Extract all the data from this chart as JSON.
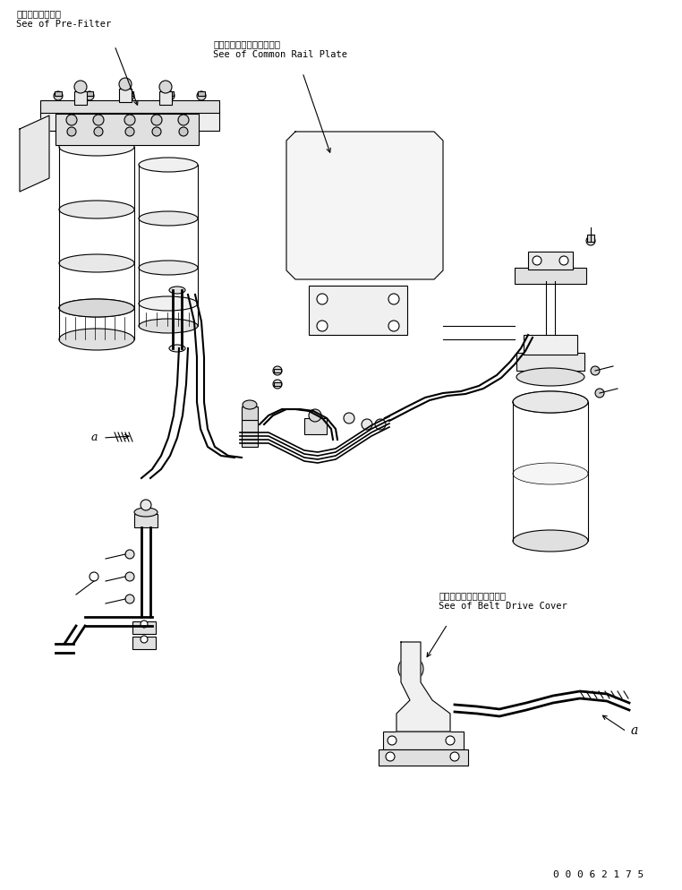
{
  "bg_color": "#ffffff",
  "line_color": "#000000",
  "fig_width": 7.62,
  "fig_height": 9.95,
  "dpi": 100,
  "annotation_pre_filter_jp": "プレフィルタ参照",
  "annotation_pre_filter_en": "See of Pre-Filter",
  "annotation_common_rail_jp": "コモンレールプレート参照",
  "annotation_common_rail_en": "See of Common Rail Plate",
  "annotation_belt_drive_jp": "ベルトドライブカバー参照",
  "annotation_belt_drive_en": "See of Belt Drive Cover",
  "label_a1": "a",
  "label_a2": "a",
  "part_number": "0 0 0 6 2 1 7 5"
}
